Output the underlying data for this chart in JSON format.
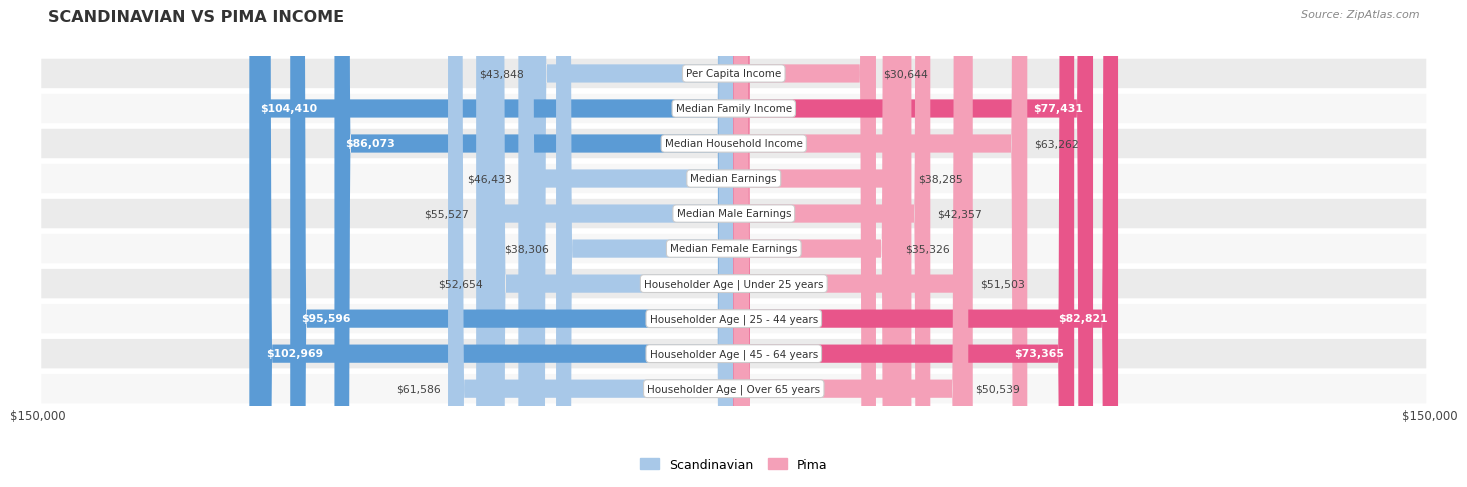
{
  "title": "SCANDINAVIAN VS PIMA INCOME",
  "source": "Source: ZipAtlas.com",
  "categories": [
    "Per Capita Income",
    "Median Family Income",
    "Median Household Income",
    "Median Earnings",
    "Median Male Earnings",
    "Median Female Earnings",
    "Householder Age | Under 25 years",
    "Householder Age | 25 - 44 years",
    "Householder Age | 45 - 64 years",
    "Householder Age | Over 65 years"
  ],
  "scandinavian_values": [
    43848,
    104410,
    86073,
    46433,
    55527,
    38306,
    52654,
    95596,
    102969,
    61586
  ],
  "pima_values": [
    30644,
    77431,
    63262,
    38285,
    42357,
    35326,
    51503,
    82821,
    73365,
    50539
  ],
  "scandinavian_labels": [
    "$43,848",
    "$104,410",
    "$86,073",
    "$46,433",
    "$55,527",
    "$38,306",
    "$52,654",
    "$95,596",
    "$102,969",
    "$61,586"
  ],
  "pima_labels": [
    "$30,644",
    "$77,431",
    "$63,262",
    "$38,285",
    "$42,357",
    "$35,326",
    "$51,503",
    "$82,821",
    "$73,365",
    "$50,539"
  ],
  "max_value": 150000,
  "scandinavian_color_light": "#a8c8e8",
  "scandinavian_color_solid": "#5b9bd5",
  "pima_color_light": "#f4a0b8",
  "pima_color_solid": "#e8558a",
  "bar_height": 0.52,
  "background_color": "#ffffff",
  "row_bg_odd": "#ebebeb",
  "row_bg_even": "#f7f7f7",
  "scand_solid_threshold": 75000,
  "pima_solid_threshold": 65000
}
